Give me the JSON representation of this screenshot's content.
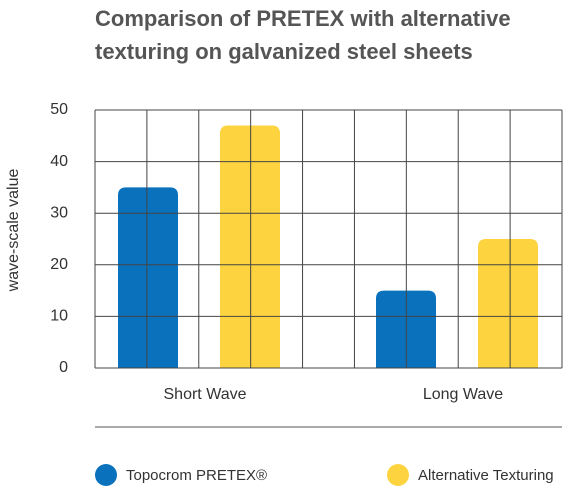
{
  "chart_data": {
    "type": "bar",
    "title": "Comparison of PRETEX with alternative texturing on galvanized steel sheets",
    "y_label": "wave-scale value",
    "categories": [
      "Short Wave",
      "Long Wave"
    ],
    "series": [
      {
        "name": "Topocrom PRETEX®",
        "color": "#0a71bd",
        "values": [
          35,
          15
        ]
      },
      {
        "name": "Alternative Texturing",
        "color": "#fdd43f",
        "values": [
          47,
          25
        ]
      }
    ],
    "ylim": [
      0,
      50
    ],
    "yticks": [
      0,
      10,
      20,
      30,
      40,
      50
    ],
    "grid": true,
    "legend": "bottom"
  }
}
